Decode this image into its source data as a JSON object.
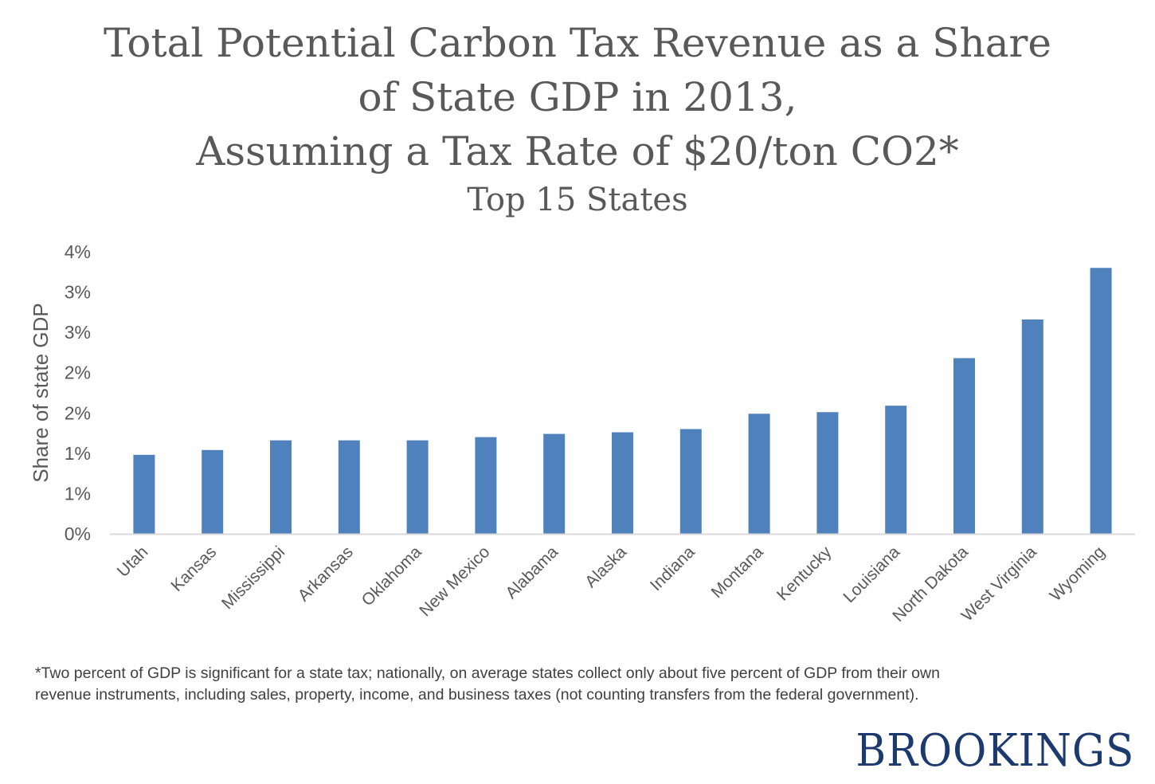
{
  "title_lines": [
    "Total Potential Carbon Tax Revenue as a Share",
    "of State GDP in 2013,",
    "Assuming a Tax Rate of $20/ton CO2*"
  ],
  "subtitle": "Top 15 States",
  "footnote": "*Two percent of GDP is significant for a state tax; nationally, on average states collect only about five percent of GDP from their own revenue instruments, including sales, property, income, and business taxes (not counting transfers from the federal government).",
  "logo": "BROOKINGS",
  "colors": {
    "bar": "#4f81bd",
    "text": "#595959",
    "logo": "#1d3a6e",
    "baseline": "#d9d9d9"
  },
  "chart_data": {
    "type": "bar",
    "title": "Total Potential Carbon Tax Revenue as a Share of State GDP in 2013, Assuming a Tax Rate of $20/ton CO2*",
    "subtitle": "Top 15 States",
    "xlabel": "",
    "ylabel": "Share of state GDP",
    "ylim": [
      0,
      3.5
    ],
    "y_ticks": [
      0,
      0.5,
      1.0,
      1.5,
      2.0,
      2.5,
      3.0,
      3.5
    ],
    "y_tick_labels": [
      "0%",
      "1%",
      "1%",
      "2%",
      "2%",
      "3%",
      "3%",
      "4%"
    ],
    "grid": false,
    "legend": "none",
    "categories": [
      "Utah",
      "Kansas",
      "Mississippi",
      "Arkansas",
      "Oklahoma",
      "New Mexico",
      "Alabama",
      "Alaska",
      "Indiana",
      "Montana",
      "Kentucky",
      "Louisiana",
      "North Dakota",
      "West Virginia",
      "Wyoming"
    ],
    "values": [
      0.98,
      1.04,
      1.16,
      1.16,
      1.16,
      1.2,
      1.24,
      1.26,
      1.3,
      1.49,
      1.51,
      1.59,
      2.18,
      2.66,
      3.3
    ]
  }
}
